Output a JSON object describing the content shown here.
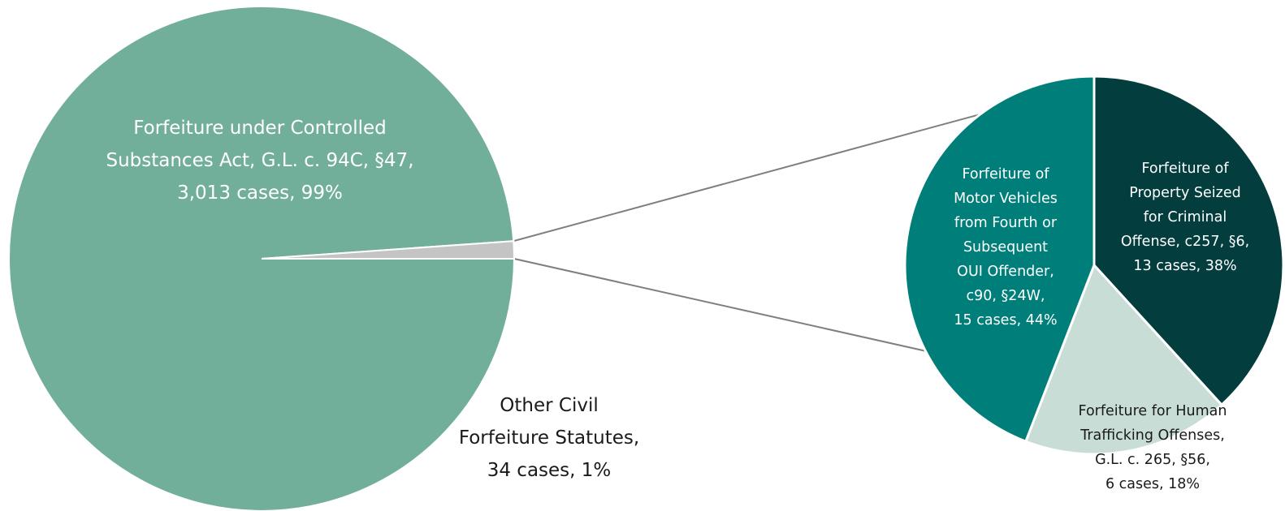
{
  "chart_data": [
    {
      "type": "pie",
      "slices": [
        {
          "label_lines": [
            "Forfeiture under Controlled",
            "Substances Act, G.L. c. 94C, §47,",
            "3,013 cases, 99%"
          ],
          "value": 3013,
          "percent": 99,
          "color": "#72af9b"
        },
        {
          "label_lines": [
            "Other Civil",
            "Forfeiture Statutes,",
            "34 cases, 1%"
          ],
          "value": 34,
          "percent": 1,
          "color": "#c4c4c4"
        }
      ]
    },
    {
      "type": "pie",
      "slices": [
        {
          "label_lines": [
            "Forfeiture of",
            "Property Seized",
            "for Criminal",
            "Offense, c257, §6,",
            "13 cases, 38%"
          ],
          "value": 13,
          "percent": 38,
          "color": "#033d3d"
        },
        {
          "label_lines": [
            "Forfeiture for Human",
            "Trafficking Offenses,",
            "G.L. c. 265, §56,",
            "6 cases, 18%"
          ],
          "value": 6,
          "percent": 18,
          "color": "#c7ddd5"
        },
        {
          "label_lines": [
            "Forfeiture of",
            "Motor Vehicles",
            "from Fourth or",
            "Subsequent",
            "OUI Offender,",
            "c90, §24W,",
            "15 cases, 44%"
          ],
          "value": 15,
          "percent": 44,
          "color": "#007f7a"
        }
      ]
    }
  ]
}
